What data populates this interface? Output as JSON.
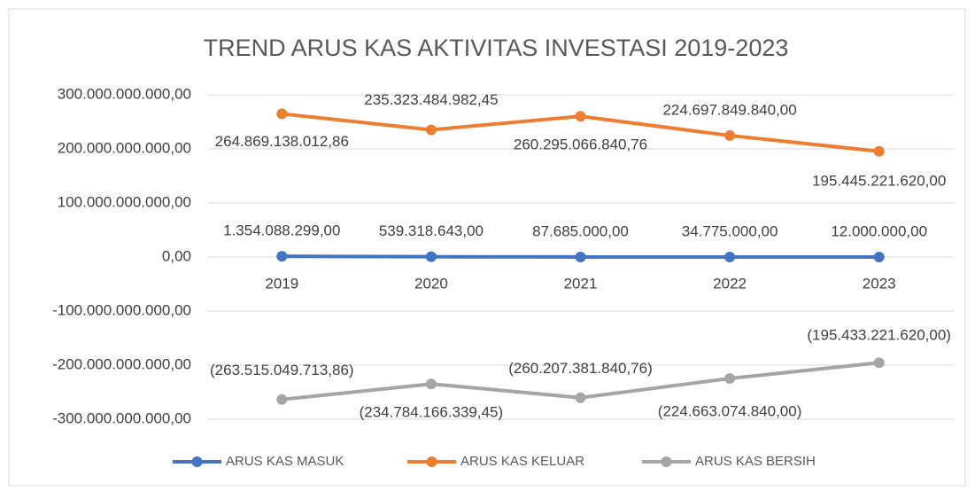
{
  "chart_data": {
    "type": "line",
    "title": "TREND ARUS KAS AKTIVITAS INVESTASI 2019-2023",
    "categories": [
      "2019",
      "2020",
      "2021",
      "2022",
      "2023"
    ],
    "series": [
      {
        "name": "ARUS KAS MASUK",
        "color": "#4472c4",
        "values": [
          1354088299,
          539318643,
          87685000,
          34775000,
          12000000
        ],
        "value_labels": [
          "1.354.088.299,00",
          "539.318.643,00",
          "87.685.000,00",
          "34.775.000,00",
          "12.000.000,00"
        ]
      },
      {
        "name": "ARUS KAS KELUAR",
        "color": "#ed7d31",
        "values": [
          264869138012.86,
          235323484982.45,
          260295066840.76,
          224697849840,
          195445221620
        ],
        "value_labels": [
          "264.869.138.012,86",
          "235.323.484.982,45",
          "260.295.066.840,76",
          "224.697.849.840,00",
          "195.445.221.620,00"
        ]
      },
      {
        "name": "ARUS KAS BERSIH",
        "color": "#a5a5a5",
        "values": [
          -263515049713.86,
          -234784166339.45,
          -260207381840.76,
          -224663074840,
          -195433221620
        ],
        "value_labels": [
          "(263.515.049.713,86)",
          "(234.784.166.339,45)",
          "(260.207.381.840,76)",
          "(224.663.074.840,00)",
          "(195.433.221.620,00)"
        ]
      }
    ],
    "ylim": [
      -300000000000,
      300000000000
    ],
    "yticks": [
      {
        "value": -300000000000,
        "label": "-300.000.000.000,00"
      },
      {
        "value": -200000000000,
        "label": "-200.000.000.000,00"
      },
      {
        "value": -100000000000,
        "label": "-100.000.000.000,00"
      },
      {
        "value": 0,
        "label": "0,00"
      },
      {
        "value": 100000000000,
        "label": "100.000.000.000,00"
      },
      {
        "value": 200000000000,
        "label": "200.000.000.000,00"
      },
      {
        "value": 300000000000,
        "label": "300.000.000.000,00"
      }
    ],
    "grid": true,
    "legend": "bottom"
  }
}
